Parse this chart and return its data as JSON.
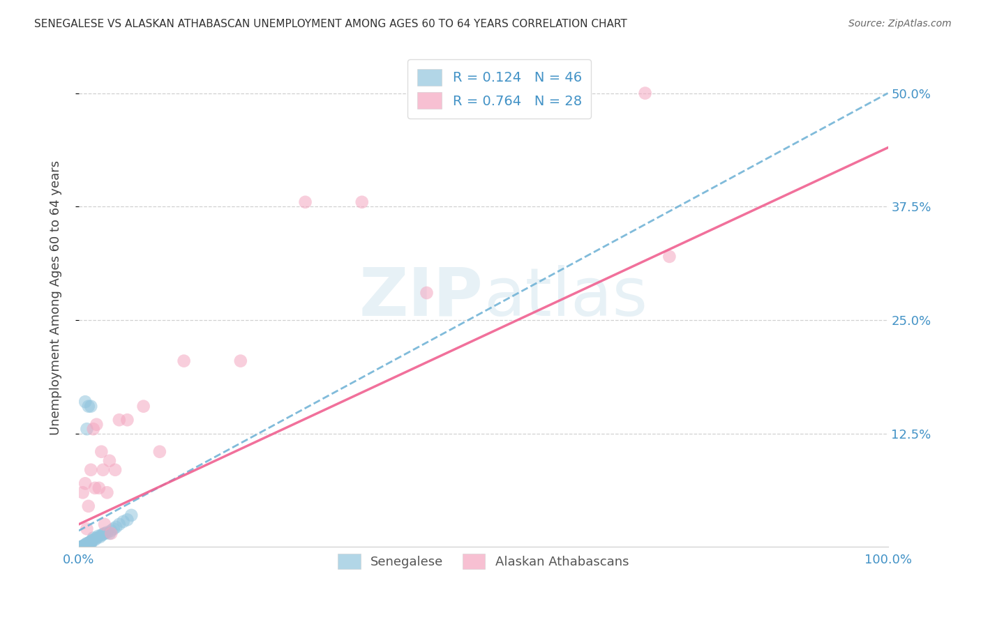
{
  "title": "SENEGALESE VS ALASKAN ATHABASCAN UNEMPLOYMENT AMONG AGES 60 TO 64 YEARS CORRELATION CHART",
  "source": "Source: ZipAtlas.com",
  "ylabel": "Unemployment Among Ages 60 to 64 years",
  "xlim": [
    0,
    1.0
  ],
  "ylim": [
    0,
    0.55
  ],
  "ytick_vals": [
    0.125,
    0.25,
    0.375,
    0.5
  ],
  "ytick_labels": [
    "12.5%",
    "25.0%",
    "37.5%",
    "50.0%"
  ],
  "xtick_vals": [
    0,
    0.25,
    0.5,
    0.75,
    1.0
  ],
  "xtick_labels": [
    "0.0%",
    "",
    "",
    "",
    "100.0%"
  ],
  "senegalese_color": "#92c5de",
  "athabascan_color": "#f4a6c0",
  "senegalese_line_color": "#6aafd4",
  "athabascan_line_color": "#f06090",
  "R_senegalese": 0.124,
  "N_senegalese": 46,
  "R_athabascan": 0.764,
  "N_athabascan": 28,
  "axis_label_color": "#4292c6",
  "title_color": "#333333",
  "source_color": "#666666",
  "watermark_color": "#d8e8f0",
  "grid_color": "#cccccc",
  "senegalese_x": [
    0.003,
    0.003,
    0.004,
    0.004,
    0.005,
    0.005,
    0.005,
    0.006,
    0.006,
    0.007,
    0.007,
    0.008,
    0.008,
    0.009,
    0.009,
    0.01,
    0.01,
    0.011,
    0.012,
    0.013,
    0.014,
    0.015,
    0.015,
    0.016,
    0.018,
    0.018,
    0.02,
    0.022,
    0.024,
    0.026,
    0.028,
    0.03,
    0.032,
    0.035,
    0.038,
    0.04,
    0.043,
    0.046,
    0.05,
    0.055,
    0.06,
    0.065,
    0.012,
    0.015,
    0.008,
    0.01
  ],
  "senegalese_y": [
    0.0,
    0.0,
    0.0,
    0.0,
    0.0,
    0.0,
    0.001,
    0.0,
    0.001,
    0.0,
    0.002,
    0.0,
    0.002,
    0.001,
    0.003,
    0.002,
    0.004,
    0.003,
    0.004,
    0.005,
    0.003,
    0.004,
    0.006,
    0.007,
    0.008,
    0.01,
    0.008,
    0.01,
    0.012,
    0.011,
    0.013,
    0.014,
    0.015,
    0.016,
    0.015,
    0.018,
    0.02,
    0.022,
    0.025,
    0.028,
    0.03,
    0.035,
    0.155,
    0.155,
    0.16,
    0.13
  ],
  "athabascan_x": [
    0.005,
    0.008,
    0.01,
    0.012,
    0.015,
    0.018,
    0.02,
    0.022,
    0.025,
    0.028,
    0.03,
    0.032,
    0.035,
    0.038,
    0.04,
    0.045,
    0.05,
    0.06,
    0.08,
    0.1,
    0.13,
    0.2,
    0.28,
    0.35,
    0.43,
    0.6,
    0.7,
    0.73
  ],
  "athabascan_y": [
    0.06,
    0.07,
    0.02,
    0.045,
    0.085,
    0.13,
    0.065,
    0.135,
    0.065,
    0.105,
    0.085,
    0.025,
    0.06,
    0.095,
    0.015,
    0.085,
    0.14,
    0.14,
    0.155,
    0.105,
    0.205,
    0.205,
    0.38,
    0.38,
    0.28,
    0.5,
    0.5,
    0.32
  ],
  "sen_line_x0": 0.0,
  "sen_line_y0": 0.02,
  "sen_line_x1": 1.0,
  "sen_line_y1": 0.5,
  "ath_line_x0": 0.0,
  "ath_line_y0": 0.02,
  "ath_line_x1": 1.0,
  "ath_line_y1": 0.44
}
